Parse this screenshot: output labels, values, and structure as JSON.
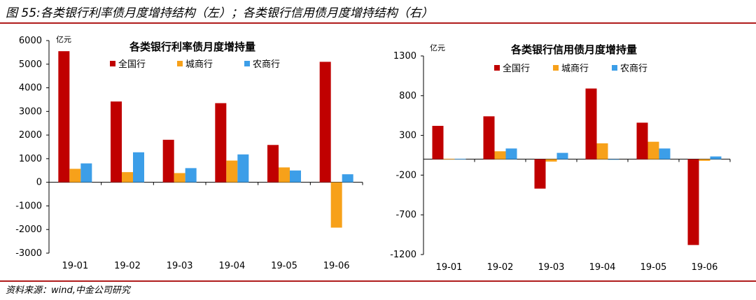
{
  "figure_title": "图 55:各类银行利率债月度增持结构（左）；各类银行信用债月度增持结构（右）",
  "source": "资料来源：wind,中金公司研究",
  "colors": {
    "全国行": "#c00000",
    "城商行": "#f7a11a",
    "农商行": "#3c9ee8",
    "rule": "#b01c1c"
  },
  "chart_data": [
    {
      "type": "bar",
      "title": "各类银行利率债月度增持量",
      "unit": "亿元",
      "categories": [
        "19-01",
        "19-02",
        "19-03",
        "19-04",
        "19-05",
        "19-06"
      ],
      "series": [
        {
          "name": "全国行",
          "values": [
            5550,
            3420,
            1800,
            3350,
            1580,
            5100
          ]
        },
        {
          "name": "城商行",
          "values": [
            570,
            430,
            390,
            920,
            630,
            -1920
          ]
        },
        {
          "name": "农商行",
          "values": [
            800,
            1270,
            600,
            1180,
            500,
            340
          ]
        }
      ],
      "ylim": [
        -3000,
        6000
      ],
      "yticks": [
        -3000,
        -2000,
        -1000,
        0,
        1000,
        2000,
        3000,
        4000,
        5000,
        6000
      ],
      "legend": "top-left"
    },
    {
      "type": "bar",
      "title": "各类银行信用债月度增持量",
      "unit": "亿元",
      "categories": [
        "19-01",
        "19-02",
        "19-03",
        "19-04",
        "19-05",
        "19-06"
      ],
      "series": [
        {
          "name": "全国行",
          "values": [
            420,
            540,
            -370,
            890,
            460,
            -1080
          ]
        },
        {
          "name": "城商行",
          "values": [
            5,
            100,
            -30,
            200,
            220,
            -20
          ]
        },
        {
          "name": "农商行",
          "values": [
            5,
            135,
            80,
            0,
            135,
            35
          ]
        }
      ],
      "ylim": [
        -1200,
        1300
      ],
      "yticks": [
        -1200,
        -700,
        -200,
        300,
        800,
        1300
      ],
      "legend": "top-left"
    }
  ]
}
